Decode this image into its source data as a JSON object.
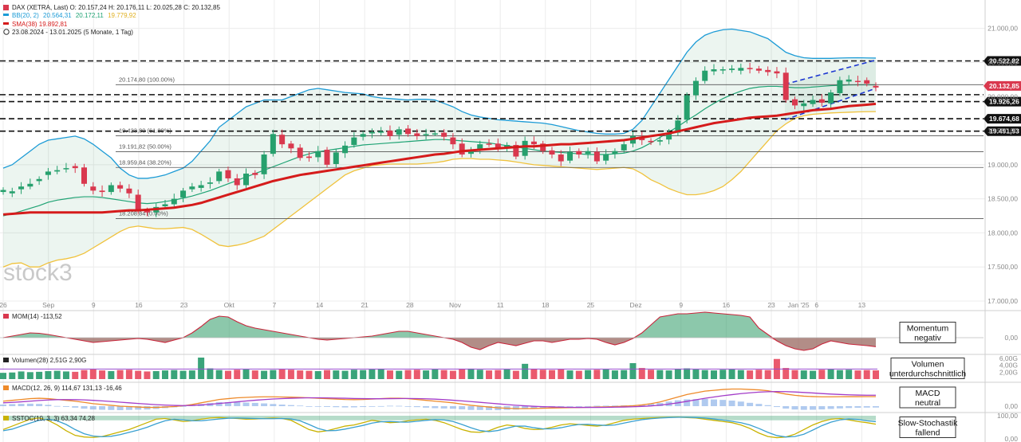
{
  "legend": {
    "dax": "DAX (XETRA, Last)  O: 20.157,24  H: 20.176,11  L: 20.025,28  C: 20.132,85",
    "bb": "BB(20, 2)  20.564,31  20.172,11  19.779,92",
    "bb_parts": {
      "name": "BB(20, 2)",
      "upper": "20.564,31",
      "middle": "20.172,11",
      "lower": "19.779,92"
    },
    "sma": "SMA(38)  19.892,81",
    "range": "23.08.2024 - 13.01.2025  (5 Monate, 1 Tag)"
  },
  "watermark": "stock3",
  "colors": {
    "up": "#26a06d",
    "down": "#d9384e",
    "sma": "#d51b1b",
    "bb_upper": "#1c9bd6",
    "bb_mid": "#1fa374",
    "bb_lower": "#f0c23c",
    "macd": "#ee8a2a",
    "signal": "#a33cc8",
    "stoch_k": "#c9b200",
    "stoch_d": "#3aa0d0",
    "channel": "#1d35d6",
    "level": "#111111"
  },
  "fib_labels": [
    "20.174,80 (100.00%)",
    "19.423,80 (61.80%)",
    "19.191,82 (50.00%)",
    "18.959,84 (38.20%)",
    "18.208,84 (0.00%)"
  ],
  "level_labels": [
    "20.522,82",
    "20.132,85",
    "19.926,26",
    "19.674,68",
    "19.491,93"
  ],
  "indicators": {
    "mom": {
      "label": "MOM(14)  -113,52",
      "annotation": [
        "Momentum",
        "negativ"
      ],
      "axis": [
        "0,00"
      ]
    },
    "vol": {
      "label": "Volumen(28)  2,51G  2,90G",
      "annotation": [
        "Volumen",
        "unterdurchschnittlich"
      ],
      "axis": [
        "6,00G",
        "4,00G",
        "2,00G"
      ]
    },
    "macd": {
      "label": "MACD(12, 26, 9)  114,67  131,13  -16,46",
      "annotation": [
        "MACD",
        "neutral"
      ],
      "axis": [
        "0,00"
      ]
    },
    "stoch": {
      "label": "SSTOC(10, 3, 3)  63,34  74,28",
      "annotation": [
        "Slow-Stochastik",
        "fallend"
      ],
      "axis": [
        "100,00",
        "0,00"
      ]
    }
  },
  "chart_data": {
    "type": "candlestick",
    "title": "DAX (XETRA, Last)",
    "period": "23.08.2024 - 13.01.2025 (5 Monate, 1 Tag)",
    "y_axis": {
      "ylim": [
        17000,
        21300
      ],
      "tick_labels": [
        "21.000,00",
        "20.500,00",
        "20.000,00",
        "19.500,00",
        "19.000,00",
        "18.500,00",
        "18.000,00",
        "17.500,00",
        "17.000,00"
      ],
      "tick_values": [
        21000,
        20500,
        20000,
        19500,
        19000,
        18500,
        18000,
        17500,
        17000
      ]
    },
    "x_axis": {
      "tick_labels": [
        "26",
        "Sep",
        "9",
        "16",
        "23",
        "Okt",
        "7",
        "14",
        "21",
        "28",
        "Nov",
        "11",
        "18",
        "25",
        "Dez",
        "9",
        "16",
        "23",
        "Jan '25",
        "6",
        "13"
      ],
      "tick_days": [
        0,
        5,
        10,
        15,
        20,
        25,
        30,
        35,
        40,
        45,
        50,
        55,
        60,
        65,
        70,
        75,
        80,
        85,
        88,
        90,
        95
      ]
    },
    "last_close": 20132.85,
    "horizontal_levels": [
      20522.82,
      20132.85,
      19926.26,
      19674.68,
      19491.93
    ],
    "fibonacci": [
      {
        "label": "20.174,80 (100.00%)",
        "value": 20174.8
      },
      {
        "label": "19.423,80 (61.80%)",
        "value": 19423.8
      },
      {
        "label": "19.191,82 (50.00%)",
        "value": 19191.82
      },
      {
        "label": "18.959,84 (38.20%)",
        "value": 18959.84
      },
      {
        "label": "18.208,84 (0.00%)",
        "value": 18208.84
      }
    ],
    "series": [
      {
        "name": "DAX (XETRA, Last)",
        "type": "candlestick"
      },
      {
        "name": "BB(20, 2)",
        "type": "band"
      },
      {
        "name": "SMA(38)",
        "type": "line"
      }
    ],
    "close": [
      18630,
      18610,
      18680,
      18720,
      18790,
      18900,
      18920,
      18950,
      18950,
      18720,
      18620,
      18600,
      18700,
      18650,
      18580,
      18320,
      18300,
      18380,
      18420,
      18500,
      18620,
      18680,
      18700,
      18740,
      18900,
      18800,
      18700,
      18870,
      18850,
      19150,
      19450,
      19300,
      19240,
      19100,
      19100,
      19200,
      19000,
      19180,
      19280,
      19400,
      19450,
      19480,
      19490,
      19420,
      19520,
      19450,
      19420,
      19450,
      19460,
      19410,
      19300,
      19150,
      19220,
      19300,
      19300,
      19250,
      19290,
      19120,
      19350,
      19300,
      19200,
      19150,
      19050,
      19190,
      19150,
      19200,
      19050,
      19150,
      19200,
      19300,
      19420,
      19360,
      19330,
      19360,
      19460,
      19650,
      20020,
      20230,
      20380,
      20400,
      20400,
      20410,
      20420,
      20410,
      20380,
      20360,
      20340,
      19950,
      19870,
      19900,
      19950,
      19910,
      20060,
      20240,
      20250,
      20220,
      20190,
      20132.85
    ],
    "open": [
      18600,
      18580,
      18640,
      18680,
      18760,
      18850,
      18900,
      18940,
      18980,
      18960,
      18680,
      18620,
      18600,
      18700,
      18650,
      18560,
      18330,
      18300,
      18390,
      18420,
      18520,
      18640,
      18660,
      18720,
      18760,
      18920,
      18800,
      18700,
      18880,
      18860,
      19160,
      19440,
      19310,
      19250,
      19120,
      19110,
      19220,
      19010,
      19170,
      19290,
      19410,
      19460,
      19470,
      19500,
      19440,
      19530,
      19460,
      19440,
      19460,
      19470,
      19400,
      19310,
      19160,
      19230,
      19310,
      19310,
      19260,
      19290,
      19130,
      19340,
      19310,
      19210,
      19150,
      19060,
      19200,
      19160,
      19190,
      19060,
      19160,
      19210,
      19310,
      19410,
      19350,
      19340,
      19370,
      19470,
      19660,
      20020,
      20230,
      20370,
      20400,
      20390,
      20380,
      20420,
      20410,
      20390,
      20370,
      20350,
      19960,
      19860,
      19890,
      19960,
      19900,
      20050,
      20220,
      20230,
      20240,
      20157.24
    ],
    "bb_upper": [
      18950,
      19000,
      19100,
      19200,
      19300,
      19360,
      19380,
      19400,
      19420,
      19380,
      19300,
      19200,
      19100,
      18950,
      18850,
      18800,
      18800,
      18820,
      18850,
      18900,
      18950,
      19050,
      19200,
      19350,
      19550,
      19650,
      19750,
      19850,
      19900,
      19950,
      19950,
      19950,
      20000,
      20050,
      20100,
      20120,
      20100,
      20080,
      20060,
      20050,
      20040,
      20000,
      19980,
      19970,
      19960,
      19950,
      19960,
      19960,
      19950,
      19900,
      19850,
      19780,
      19730,
      19700,
      19680,
      19660,
      19650,
      19640,
      19630,
      19620,
      19610,
      19590,
      19560,
      19530,
      19500,
      19480,
      19460,
      19450,
      19450,
      19460,
      19520,
      19650,
      19850,
      20050,
      20250,
      20450,
      20650,
      20800,
      20900,
      20950,
      20980,
      20990,
      20970,
      20950,
      20900,
      20850,
      20750,
      20650,
      20600,
      20570,
      20560,
      20560,
      20560,
      20565,
      20568,
      20570,
      20567,
      20564.31
    ],
    "bb_mid": [
      18250,
      18280,
      18320,
      18360,
      18400,
      18450,
      18480,
      18500,
      18520,
      18530,
      18530,
      18520,
      18500,
      18480,
      18460,
      18440,
      18430,
      18440,
      18460,
      18480,
      18510,
      18540,
      18580,
      18620,
      18670,
      18720,
      18770,
      18820,
      18870,
      18920,
      18970,
      19020,
      19070,
      19120,
      19160,
      19190,
      19210,
      19230,
      19250,
      19270,
      19290,
      19300,
      19310,
      19320,
      19330,
      19340,
      19350,
      19360,
      19370,
      19370,
      19360,
      19350,
      19340,
      19330,
      19320,
      19300,
      19280,
      19260,
      19240,
      19220,
      19200,
      19190,
      19180,
      19170,
      19160,
      19150,
      19150,
      19150,
      19160,
      19170,
      19200,
      19250,
      19320,
      19400,
      19480,
      19560,
      19650,
      19730,
      19820,
      19900,
      19970,
      20030,
      20080,
      20120,
      20140,
      20150,
      20150,
      20140,
      20130,
      20130,
      20140,
      20150,
      20160,
      20165,
      20170,
      20172,
      20172,
      20172.11
    ],
    "bb_lower": [
      17500,
      17550,
      17560,
      17500,
      17500,
      17560,
      17600,
      17620,
      17650,
      17700,
      17780,
      17860,
      17940,
      18020,
      18080,
      18100,
      18080,
      18060,
      18060,
      18070,
      18080,
      18050,
      17980,
      17900,
      17820,
      17800,
      17820,
      17850,
      17900,
      17950,
      18050,
      18150,
      18250,
      18350,
      18450,
      18550,
      18650,
      18750,
      18850,
      18910,
      18950,
      18990,
      19000,
      19010,
      19010,
      19010,
      19010,
      19020,
      19030,
      19050,
      19080,
      19090,
      19090,
      19080,
      19080,
      19070,
      19060,
      19040,
      19020,
      19000,
      18990,
      18980,
      18970,
      18960,
      18950,
      18940,
      18930,
      18940,
      18950,
      18960,
      18940,
      18870,
      18780,
      18720,
      18650,
      18600,
      18560,
      18560,
      18580,
      18620,
      18680,
      18780,
      18900,
      19050,
      19200,
      19350,
      19500,
      19600,
      19680,
      19720,
      19740,
      19750,
      19760,
      19765,
      19770,
      19775,
      19778,
      19779.92
    ],
    "sma": [
      18270,
      18280,
      18290,
      18300,
      18300,
      18300,
      18300,
      18300,
      18300,
      18300,
      18300,
      18300,
      18310,
      18320,
      18330,
      18330,
      18340,
      18350,
      18360,
      18370,
      18390,
      18410,
      18440,
      18480,
      18520,
      18560,
      18600,
      18640,
      18680,
      18720,
      18760,
      18790,
      18820,
      18850,
      18870,
      18890,
      18910,
      18930,
      18950,
      18970,
      18990,
      19010,
      19030,
      19050,
      19070,
      19090,
      19110,
      19130,
      19150,
      19160,
      19180,
      19200,
      19210,
      19220,
      19230,
      19240,
      19250,
      19260,
      19270,
      19270,
      19280,
      19290,
      19300,
      19300,
      19310,
      19320,
      19330,
      19340,
      19350,
      19360,
      19380,
      19400,
      19420,
      19440,
      19460,
      19490,
      19520,
      19550,
      19580,
      19610,
      19630,
      19650,
      19670,
      19690,
      19700,
      19710,
      19720,
      19740,
      19760,
      19780,
      19800,
      19810,
      19820,
      19840,
      19860,
      19870,
      19880,
      19892.81
    ],
    "mom": [
      0,
      20,
      40,
      60,
      55,
      40,
      20,
      0,
      -20,
      -40,
      -60,
      -50,
      -40,
      -30,
      -20,
      -10,
      -20,
      -40,
      -60,
      -30,
      0,
      60,
      140,
      230,
      270,
      260,
      200,
      150,
      120,
      100,
      80,
      60,
      40,
      20,
      0,
      -20,
      -30,
      -20,
      -10,
      0,
      10,
      20,
      40,
      60,
      80,
      80,
      60,
      40,
      20,
      0,
      -20,
      -60,
      -120,
      -150,
      -100,
      -60,
      -80,
      -100,
      -70,
      -40,
      -40,
      -60,
      -40,
      -20,
      -20,
      -10,
      -20,
      -60,
      -90,
      -60,
      -10,
      60,
      160,
      260,
      280,
      300,
      300,
      310,
      320,
      310,
      300,
      290,
      280,
      260,
      120,
      40,
      -40,
      -100,
      -140,
      -160,
      -140,
      -80,
      -40,
      -60,
      -80,
      -90,
      -100,
      -113.52
    ],
    "volume": [
      1.8,
      1.9,
      2.2,
      2.0,
      2.1,
      2.3,
      2.4,
      2.2,
      2.1,
      2.6,
      2.8,
      2.5,
      2.3,
      2.6,
      2.7,
      2.4,
      2.2,
      2.3,
      2.5,
      2.6,
      2.4,
      2.5,
      6.2,
      3.1,
      2.6,
      2.4,
      2.7,
      2.8,
      2.5,
      2.4,
      2.6,
      2.8,
      2.7,
      2.5,
      2.4,
      2.3,
      2.6,
      2.5,
      2.4,
      2.7,
      2.6,
      2.8,
      2.9,
      2.5,
      2.4,
      2.6,
      2.7,
      2.5,
      2.8,
      2.6,
      2.4,
      2.9,
      3.0,
      2.7,
      2.5,
      2.6,
      2.8,
      2.4,
      4.4,
      2.9,
      2.7,
      2.6,
      2.8,
      2.5,
      2.4,
      2.6,
      2.7,
      2.8,
      2.5,
      2.6,
      4.6,
      3.2,
      2.7,
      2.6,
      2.5,
      2.9,
      3.1,
      2.8,
      2.6,
      2.5,
      2.7,
      2.8,
      2.6,
      2.5,
      2.7,
      2.6,
      5.8,
      3.2,
      2.6,
      2.5,
      2.4,
      2.7,
      2.8,
      2.6,
      2.7,
      2.5,
      2.6,
      2.51
    ],
    "volume_avg": 2.9,
    "macd": [
      60,
      70,
      80,
      90,
      95,
      90,
      80,
      70,
      60,
      45,
      30,
      20,
      10,
      0,
      -5,
      -10,
      -15,
      -15,
      -10,
      -5,
      5,
      20,
      40,
      60,
      80,
      90,
      100,
      105,
      110,
      112,
      112,
      110,
      108,
      105,
      100,
      95,
      90,
      85,
      80,
      78,
      80,
      85,
      90,
      95,
      95,
      90,
      80,
      70,
      60,
      50,
      40,
      25,
      10,
      0,
      -10,
      -20,
      -25,
      -30,
      -30,
      -28,
      -25,
      -22,
      -20,
      -18,
      -16,
      -14,
      -10,
      -8,
      -5,
      0,
      5,
      15,
      30,
      50,
      80,
      110,
      140,
      160,
      180,
      190,
      200,
      205,
      205,
      200,
      195,
      185,
      165,
      145,
      130,
      120,
      115,
      112,
      112,
      113,
      114,
      114,
      114.5,
      114.67
    ],
    "signal": [
      40,
      45,
      52,
      60,
      68,
      74,
      78,
      79,
      78,
      75,
      70,
      63,
      56,
      48,
      40,
      32,
      25,
      18,
      13,
      9,
      7,
      9,
      15,
      23,
      32,
      42,
      52,
      62,
      71,
      79,
      86,
      91,
      95,
      98,
      100,
      100,
      99,
      97,
      95,
      92,
      90,
      89,
      89,
      90,
      91,
      92,
      91,
      88,
      84,
      78,
      71,
      63,
      55,
      46,
      37,
      28,
      19,
      11,
      4,
      -2,
      -6,
      -9,
      -12,
      -14,
      -15,
      -15,
      -15,
      -14,
      -12,
      -10,
      -7,
      -3,
      3,
      12,
      25,
      40,
      58,
      76,
      94,
      110,
      125,
      138,
      150,
      160,
      168,
      173,
      175,
      174,
      170,
      164,
      158,
      151,
      145,
      140,
      136,
      133,
      131.5,
      131.13
    ],
    "stoch_k": [
      40,
      55,
      70,
      85,
      90,
      80,
      60,
      35,
      15,
      8,
      6,
      10,
      20,
      30,
      40,
      55,
      70,
      85,
      88,
      82,
      75,
      78,
      85,
      90,
      92,
      90,
      88,
      85,
      86,
      88,
      90,
      88,
      80,
      60,
      40,
      30,
      35,
      45,
      55,
      60,
      70,
      80,
      75,
      70,
      72,
      78,
      82,
      85,
      80,
      70,
      55,
      40,
      30,
      28,
      35,
      50,
      60,
      55,
      45,
      40,
      42,
      50,
      60,
      65,
      62,
      58,
      55,
      60,
      70,
      80,
      85,
      88,
      90,
      92,
      93,
      94,
      92,
      90,
      85,
      80,
      75,
      70,
      60,
      45,
      25,
      10,
      5,
      8,
      20,
      40,
      60,
      75,
      85,
      88,
      82,
      75,
      70,
      63.34
    ],
    "stoch_d": [
      35,
      42,
      55,
      68,
      80,
      85,
      78,
      62,
      40,
      22,
      12,
      9,
      11,
      18,
      28,
      38,
      50,
      65,
      78,
      85,
      82,
      78,
      78,
      82,
      86,
      89,
      90,
      89,
      88,
      87,
      87,
      88,
      86,
      78,
      62,
      45,
      35,
      36,
      42,
      50,
      58,
      68,
      74,
      75,
      73,
      72,
      76,
      80,
      83,
      82,
      75,
      62,
      48,
      36,
      31,
      36,
      46,
      55,
      55,
      48,
      43,
      43,
      48,
      56,
      62,
      63,
      60,
      58,
      60,
      68,
      76,
      83,
      87,
      90,
      92,
      93,
      93,
      92,
      90,
      86,
      81,
      76,
      70,
      60,
      45,
      28,
      14,
      8,
      10,
      20,
      38,
      57,
      72,
      82,
      86,
      84,
      78,
      74.28
    ]
  }
}
